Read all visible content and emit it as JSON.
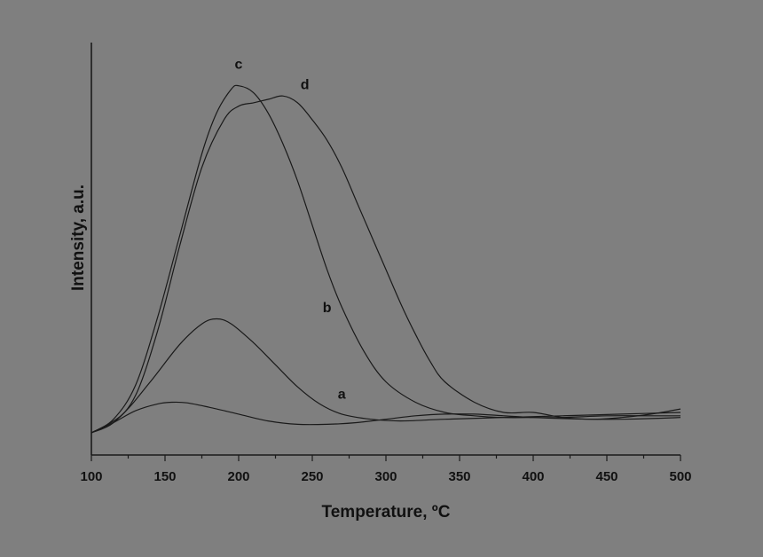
{
  "colors": {
    "background": "#7f7f7f",
    "ink": "#1a1a1a"
  },
  "chart_data": {
    "type": "line",
    "title": "",
    "xlabel": "Temperature, ºC",
    "ylabel": "Intensity, a.u.",
    "xlim": [
      100,
      500
    ],
    "ylim": [
      0,
      1.1
    ],
    "xticks": [
      "100",
      "150",
      "200",
      "250",
      "300",
      "350",
      "400",
      "450",
      "500"
    ],
    "grid": false,
    "series": [
      {
        "name": "a",
        "x": [
          100,
          115,
          130,
          145,
          155,
          165,
          180,
          200,
          220,
          240,
          260,
          280,
          300,
          320,
          340,
          360,
          380,
          400,
          420,
          440,
          460,
          480,
          500
        ],
        "y": [
          0.0,
          0.03,
          0.065,
          0.085,
          0.09,
          0.088,
          0.075,
          0.055,
          0.035,
          0.025,
          0.025,
          0.03,
          0.04,
          0.05,
          0.055,
          0.055,
          0.05,
          0.045,
          0.042,
          0.04,
          0.04,
          0.042,
          0.045
        ]
      },
      {
        "name": "b",
        "x": [
          100,
          120,
          140,
          160,
          175,
          185,
          195,
          210,
          225,
          240,
          255,
          270,
          290,
          310,
          340,
          380,
          420,
          460,
          500
        ],
        "y": [
          0.0,
          0.05,
          0.15,
          0.26,
          0.32,
          0.335,
          0.32,
          0.265,
          0.2,
          0.135,
          0.085,
          0.055,
          0.04,
          0.035,
          0.04,
          0.045,
          0.05,
          0.055,
          0.06
        ]
      },
      {
        "name": "c",
        "x": [
          100,
          115,
          130,
          145,
          160,
          175,
          185,
          195,
          200,
          210,
          220,
          230,
          240,
          250,
          260,
          270,
          285,
          300,
          320,
          340,
          360,
          380,
          400,
          420,
          450,
          480,
          500
        ],
        "y": [
          0.0,
          0.04,
          0.14,
          0.34,
          0.58,
          0.82,
          0.94,
          1.01,
          1.02,
          1.0,
          0.94,
          0.85,
          0.74,
          0.61,
          0.48,
          0.37,
          0.24,
          0.15,
          0.09,
          0.06,
          0.05,
          0.045,
          0.045,
          0.045,
          0.05,
          0.05,
          0.05
        ]
      },
      {
        "name": "d",
        "x": [
          100,
          115,
          130,
          145,
          160,
          175,
          190,
          200,
          210,
          220,
          230,
          240,
          250,
          260,
          270,
          280,
          290,
          300,
          310,
          320,
          330,
          340,
          360,
          380,
          400,
          420,
          440,
          460,
          480,
          500
        ],
        "y": [
          0.0,
          0.03,
          0.11,
          0.3,
          0.55,
          0.78,
          0.92,
          0.96,
          0.97,
          0.98,
          0.99,
          0.97,
          0.92,
          0.86,
          0.78,
          0.68,
          0.58,
          0.48,
          0.38,
          0.29,
          0.21,
          0.15,
          0.09,
          0.06,
          0.06,
          0.045,
          0.04,
          0.045,
          0.055,
          0.07
        ]
      }
    ],
    "labels": [
      {
        "text": "a",
        "x": 270,
        "y": 0.1
      },
      {
        "text": "b",
        "x": 260,
        "y": 0.355
      },
      {
        "text": "c",
        "x": 200,
        "y": 1.07
      },
      {
        "text": "d",
        "x": 245,
        "y": 1.01
      }
    ]
  }
}
